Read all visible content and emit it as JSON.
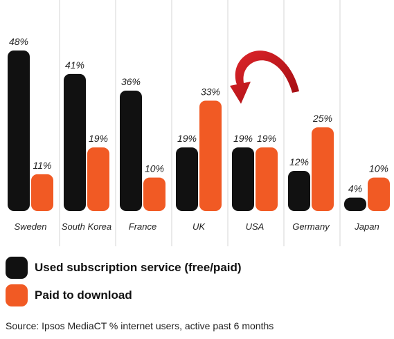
{
  "chart_data": {
    "type": "bar",
    "categories": [
      "Sweden",
      "South Korea",
      "France",
      "UK",
      "USA",
      "Germany",
      "Japan"
    ],
    "series": [
      {
        "name": "Used subscription service (free/paid)",
        "color": "#111111",
        "values": [
          48,
          41,
          36,
          19,
          19,
          12,
          4
        ]
      },
      {
        "name": "Paid to download",
        "color": "#f15a24",
        "values": [
          11,
          19,
          10,
          33,
          19,
          25,
          10
        ]
      }
    ],
    "value_labels": [
      [
        "48%",
        "41%",
        "36%",
        "19%",
        "19%",
        "12%",
        "4%"
      ],
      [
        "11%",
        "19%",
        "10%",
        "33%",
        "19%",
        "25%",
        "10%"
      ]
    ],
    "ylim": [
      0,
      48
    ],
    "grid": false,
    "legend_position": "bottom-left",
    "annotation": "red curved arrow pointing down toward the USA bars",
    "arrow_color": "#c8161d"
  },
  "legend": {
    "items": [
      {
        "label": "Used subscription service (free/paid)",
        "color": "#111111"
      },
      {
        "label": "Paid to download",
        "color": "#f15a24"
      }
    ]
  },
  "source": "Source: Ipsos MediaCT % internet users, active past 6 months"
}
